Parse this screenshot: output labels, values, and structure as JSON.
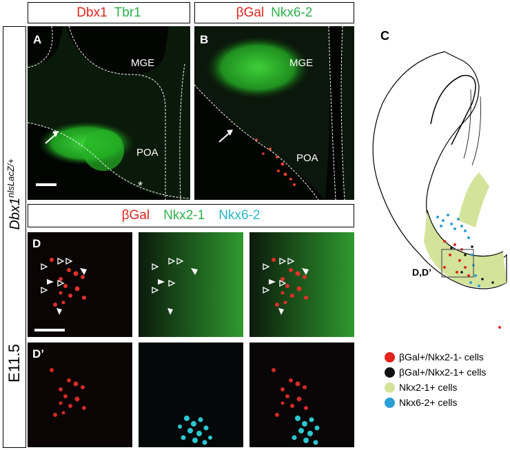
{
  "top_headers": {
    "left": {
      "word1": "Dbx1",
      "word2": "Tbr1"
    },
    "right": {
      "word1": "βGal",
      "word2": "Nkx6-2"
    }
  },
  "bottom_header": {
    "word1": "βGal",
    "word2": "Nkx2-1",
    "word3": "Nkx6-2"
  },
  "side_labels": {
    "stage": "E11.5",
    "genotype_base": "Dbx1",
    "genotype_sup": "nlsLacZ/+"
  },
  "panels": {
    "A": {
      "label": "A",
      "region_top": "MGE",
      "region_bottom": "POA",
      "asterisk": "*"
    },
    "B": {
      "label": "B",
      "region_top": "MGE",
      "region_bottom": "POA"
    },
    "C": {
      "label": "C",
      "box_label": "D,D’"
    },
    "D": {
      "label": "D"
    },
    "Dprime": {
      "label": "D’"
    }
  },
  "legend": [
    {
      "label": "βGal+/Nkx2-1- cells",
      "color": "#e3241b"
    },
    {
      "label": "βGal+/Nkx2-1+ cells",
      "color": "#111111"
    },
    {
      "label": "Nkx2-1+ cells",
      "color": "#d3e39a"
    },
    {
      "label": "Nkx6-2+ cells",
      "color": "#2a9fd6"
    }
  ]
}
